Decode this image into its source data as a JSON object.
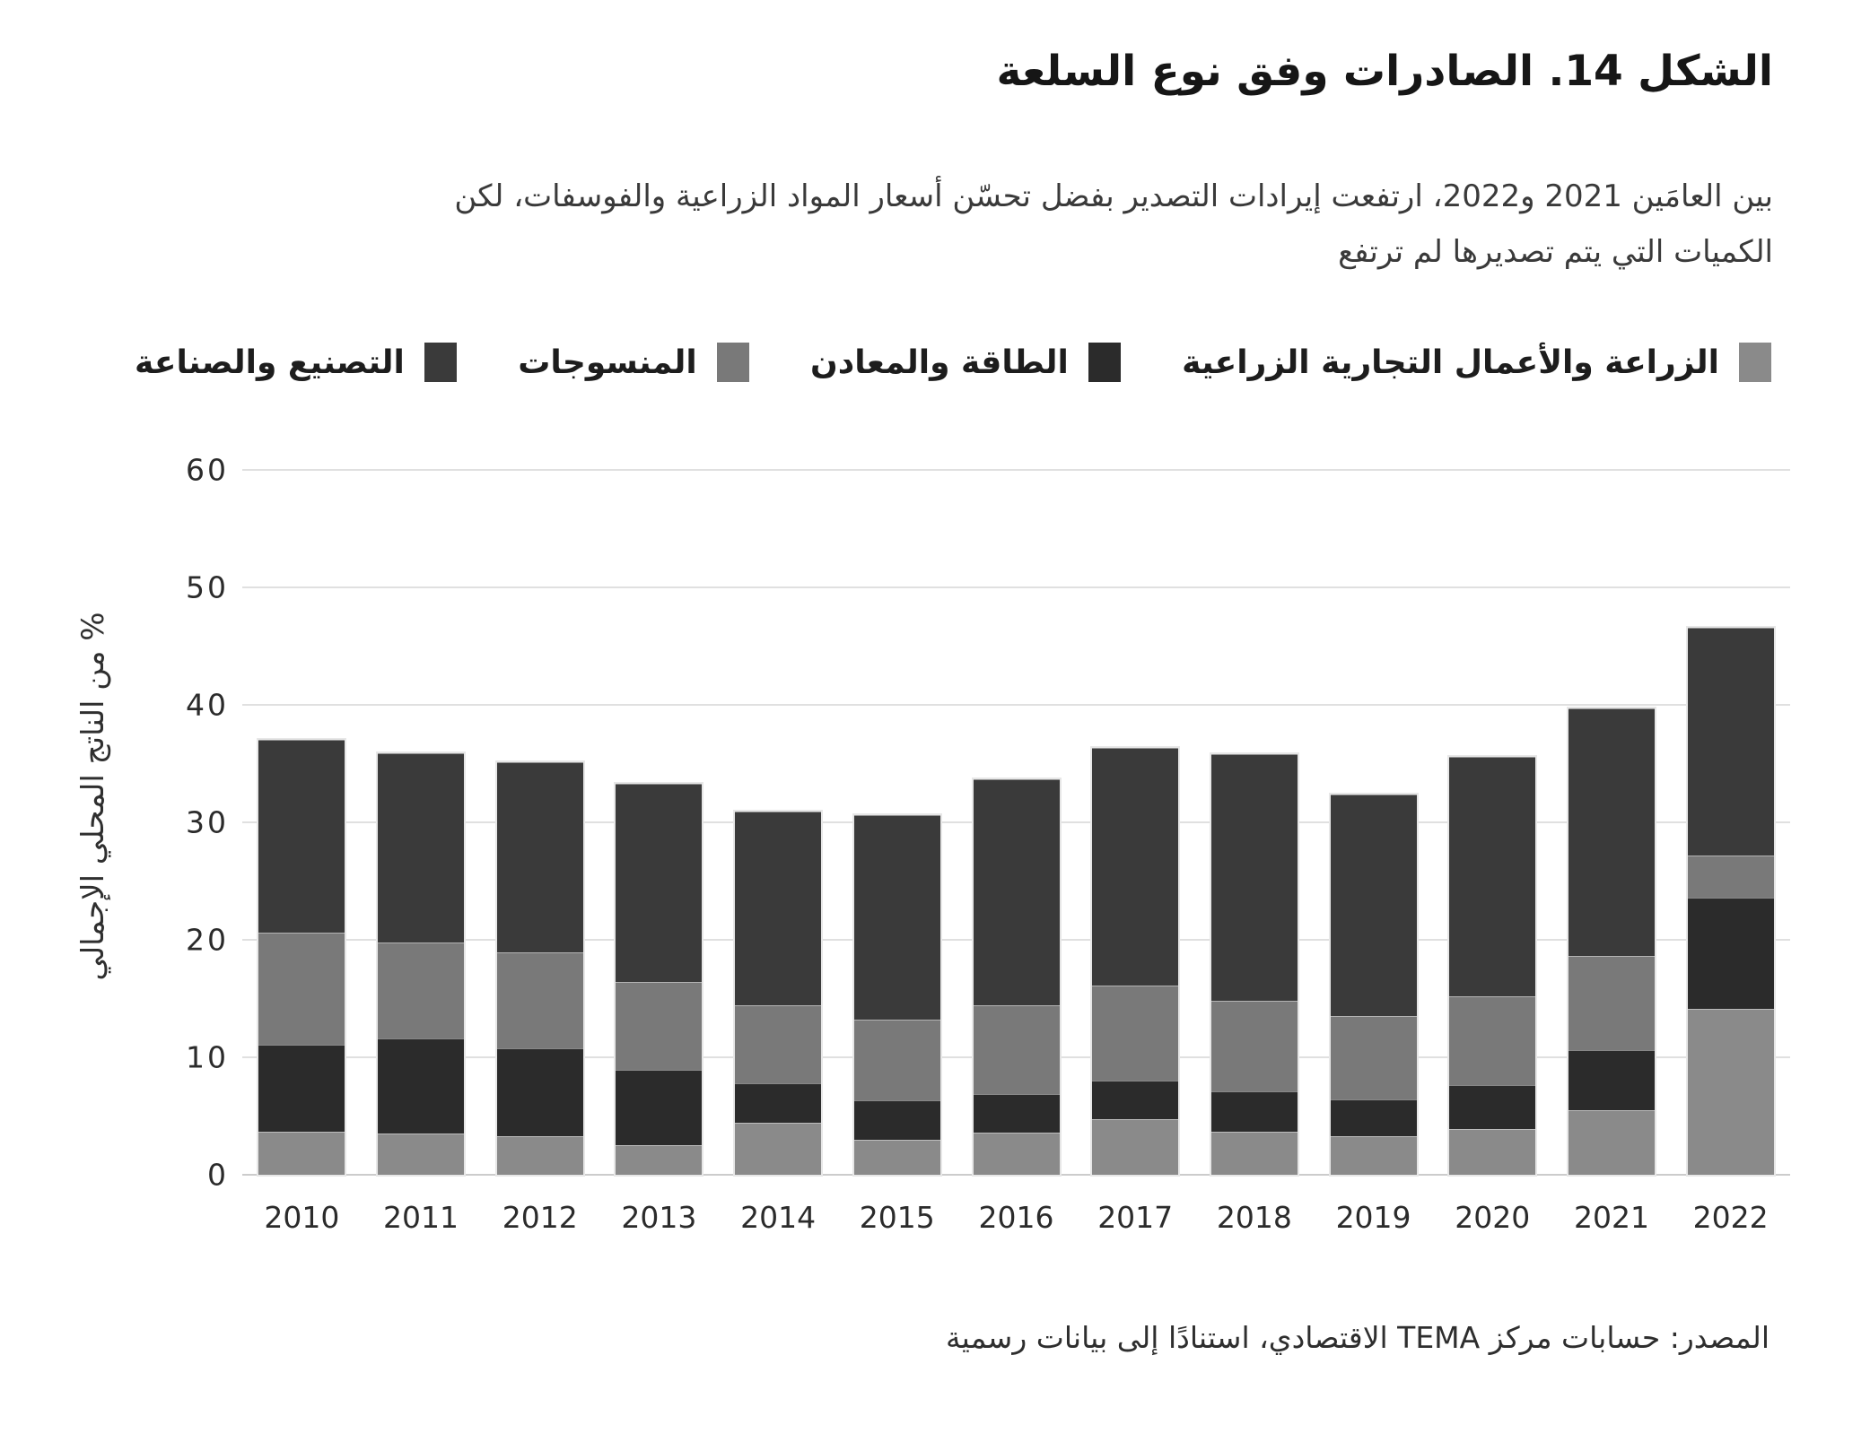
{
  "title": "الشكل 14. الصادرات وفق نوع السلعة",
  "subtitle_lines": [
    "بين العامَين 2021 و2022، ارتفعت إيرادات التصدير بفضل تحسّن أسعار المواد الزراعية والفوسفات، لكن",
    "الكميات التي يتم تصديرها لم ترتفع"
  ],
  "source": "المصدر: حسابات مركز TEMA الاقتصادي، استنادًا إلى بيانات رسمية",
  "colors": {
    "agriculture": "#8A8A8A",
    "energy_minerals": "#2B2B2B",
    "textiles": "#797979",
    "manufacturing": "#3A3A3A",
    "gridline": "#e0e0e0",
    "text": "#2b2b2b"
  },
  "chart_data": {
    "type": "bar",
    "stacked": true,
    "categories": [
      "2010",
      "2011",
      "2012",
      "2013",
      "2014",
      "2015",
      "2016",
      "2017",
      "2018",
      "2019",
      "2020",
      "2021",
      "2022"
    ],
    "series": [
      {
        "name": "الزراعة والأعمال التجارية الزراعية",
        "color": "#8A8A8A",
        "values": [
          3.7,
          3.5,
          3.3,
          2.5,
          4.4,
          3.0,
          3.6,
          4.7,
          3.7,
          3.3,
          3.9,
          5.5,
          14.1
        ]
      },
      {
        "name": "الطاقة والمعادن",
        "color": "#2B2B2B",
        "values": [
          7.4,
          8.1,
          7.5,
          6.4,
          3.4,
          3.3,
          3.3,
          3.3,
          3.4,
          3.1,
          3.7,
          5.1,
          9.5
        ]
      },
      {
        "name": "المنسوجات",
        "color": "#797979",
        "values": [
          9.5,
          8.2,
          8.1,
          7.5,
          6.6,
          6.9,
          7.5,
          8.1,
          7.7,
          7.1,
          7.6,
          8.0,
          3.6
        ]
      },
      {
        "name": "التصنيع والصناعة",
        "color": "#3A3A3A",
        "values": [
          16.4,
          16.1,
          16.2,
          16.9,
          16.5,
          17.4,
          19.3,
          20.2,
          21.0,
          18.9,
          20.4,
          21.1,
          19.4
        ]
      }
    ],
    "totals": [
      37.0,
      35.9,
      35.1,
      33.3,
      30.9,
      30.6,
      33.7,
      36.3,
      35.8,
      32.4,
      35.6,
      39.7,
      46.6
    ],
    "ylabel": "% من الناتج المحلي الإجمالي",
    "xlabel": "",
    "ylim": [
      0,
      60
    ],
    "yticks": [
      0,
      10,
      20,
      30,
      40,
      50,
      60
    ],
    "grid": true,
    "legend_position": "top"
  }
}
